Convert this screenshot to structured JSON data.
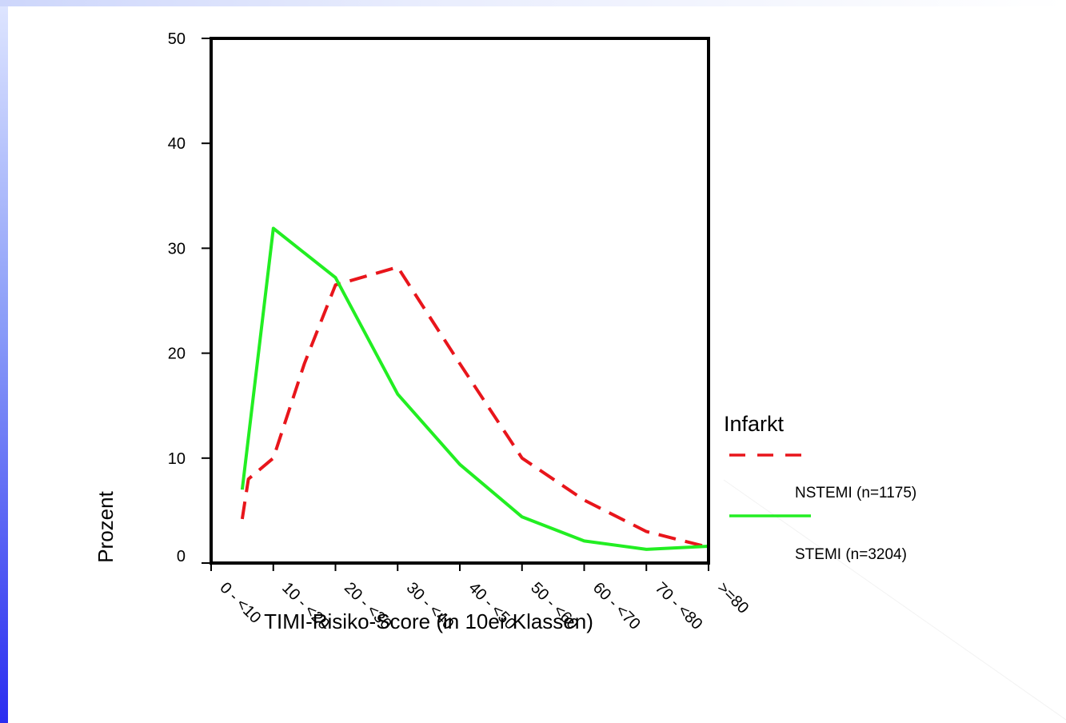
{
  "colors": {
    "nstemi": "#e8151b",
    "stemi": "#22ee22",
    "axis": "#000000",
    "slide_accent": "#2a2df0"
  },
  "chart_data": {
    "type": "line",
    "categories": [
      "0 - <10",
      "10 - <20",
      "20 - <30",
      "30 - <40",
      "40 - <50",
      "50 - <60",
      "60 - <70",
      "70 - <80",
      ">=80"
    ],
    "series": [
      {
        "name": "NSTEMI (n=1175)",
        "style": "dashed",
        "x": [
          -0.5,
          -0.4,
          0.0,
          0.5,
          1.0,
          2.0,
          3.0,
          4.0,
          5.0,
          6.0,
          7.0,
          8.0
        ],
        "values": [
          4.2,
          8.0,
          10.0,
          19.0,
          26.5,
          28.2,
          19.0,
          10.0,
          6.0,
          3.0,
          1.5,
          1.5
        ]
      },
      {
        "name": "STEMI (n=3204)",
        "style": "solid",
        "x": [
          -0.5,
          0.0,
          1.0,
          2.0,
          3.0,
          4.0,
          5.0,
          6.0,
          7.0,
          8.0
        ],
        "values": [
          7.0,
          31.9,
          27.2,
          16.1,
          9.4,
          4.4,
          2.1,
          1.3,
          1.6,
          1.6
        ]
      }
    ],
    "y_ticks": [
      "0",
      "10",
      "20",
      "30",
      "40",
      "50"
    ],
    "ylim": [
      0,
      50
    ],
    "xlabel": "TIMI-Risiko-Score (in 10er Klassen)",
    "ylabel": "Prozent",
    "legend": {
      "title": "Infarkt",
      "placement": "right"
    },
    "grid": false
  }
}
